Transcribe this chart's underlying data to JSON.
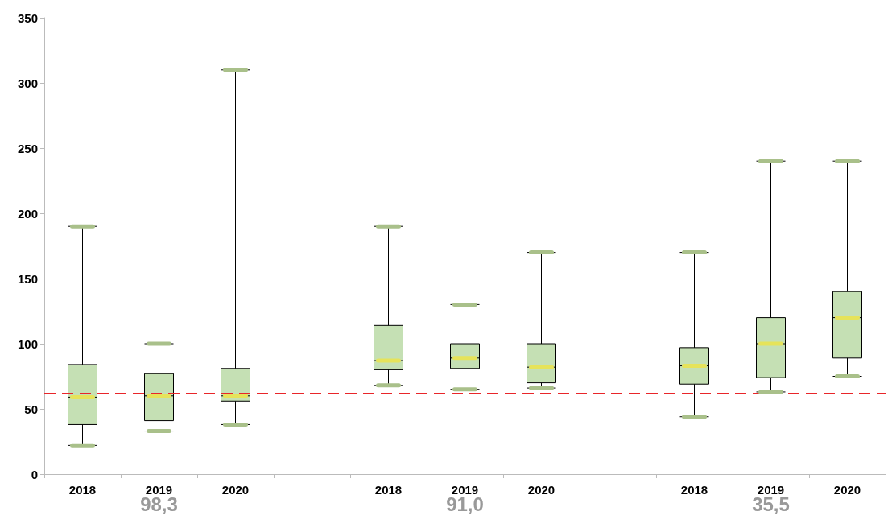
{
  "chart_data": {
    "type": "box",
    "categories": [
      "2018",
      "2019",
      "2020",
      null,
      "2018",
      "2019",
      "2020",
      null,
      "2018",
      "2019",
      "2020"
    ],
    "boxes": [
      {
        "low": 22,
        "q1": 38,
        "median": 59,
        "q3": 84,
        "high": 190
      },
      {
        "low": 33,
        "q1": 41,
        "median": 60,
        "q3": 77,
        "high": 100
      },
      {
        "low": 38,
        "q1": 56,
        "median": 60,
        "q3": 81,
        "high": 310
      },
      null,
      {
        "low": 68,
        "q1": 80,
        "median": 87,
        "q3": 114,
        "high": 190
      },
      {
        "low": 65,
        "q1": 81,
        "median": 89,
        "q3": 100,
        "high": 130
      },
      {
        "low": 66,
        "q1": 70,
        "median": 82,
        "q3": 100,
        "high": 170
      },
      null,
      {
        "low": 44,
        "q1": 69,
        "median": 83,
        "q3": 97,
        "high": 170
      },
      {
        "low": 63,
        "q1": 74,
        "median": 100,
        "q3": 120,
        "high": 240
      },
      {
        "low": 75,
        "q1": 89,
        "median": 120,
        "q3": 140,
        "high": 240
      }
    ],
    "color": "#c5e0b4",
    "ylim": [
      0,
      350
    ],
    "yticks": [
      0,
      50,
      100,
      150,
      200,
      250,
      300,
      350
    ],
    "ref_lines": [
      {
        "axis": "y",
        "value": 62,
        "color": "#e8262a",
        "line_style": "dashed"
      }
    ],
    "annotations": [
      "98,3",
      "91,0",
      "35,5"
    ],
    "grid": false
  }
}
